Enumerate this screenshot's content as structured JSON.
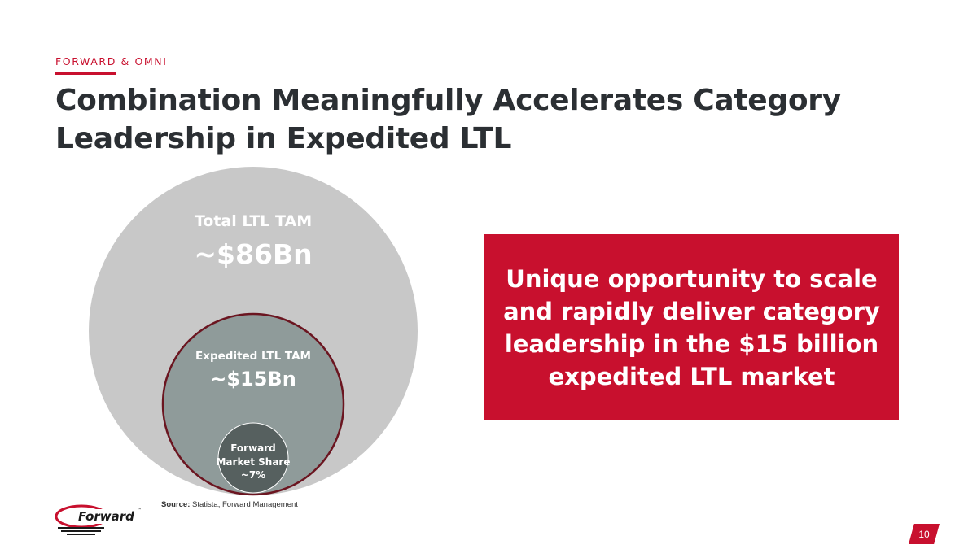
{
  "header": {
    "section_label": "FORWARD & OMNI",
    "title_line1": "Combination Meaningfully Accelerates Category",
    "title_line2": "Leadership in Expedited LTL"
  },
  "diagram": {
    "outer": {
      "label": "Total LTL TAM",
      "value": "~$86Bn",
      "color": "#c8c8c8"
    },
    "middle": {
      "label": "Expedited LTL TAM",
      "value": "~$15Bn",
      "color": "#8f9b9a",
      "border": "#6b1520"
    },
    "inner": {
      "label_line1": "Forward",
      "label_line2": "Market Share",
      "value": "~7%",
      "color": "#56605f"
    }
  },
  "callout": {
    "text": "Unique opportunity to scale and rapidly deliver category leadership in the $15 billion expedited LTL market",
    "color": "#c8102e"
  },
  "source": {
    "label": "Source:",
    "text": "Statista, Forward Management"
  },
  "logo": {
    "text": "Forward",
    "tm": "™"
  },
  "page_number": "10",
  "colors": {
    "accent": "#c8102e",
    "title": "#2b2f33"
  }
}
